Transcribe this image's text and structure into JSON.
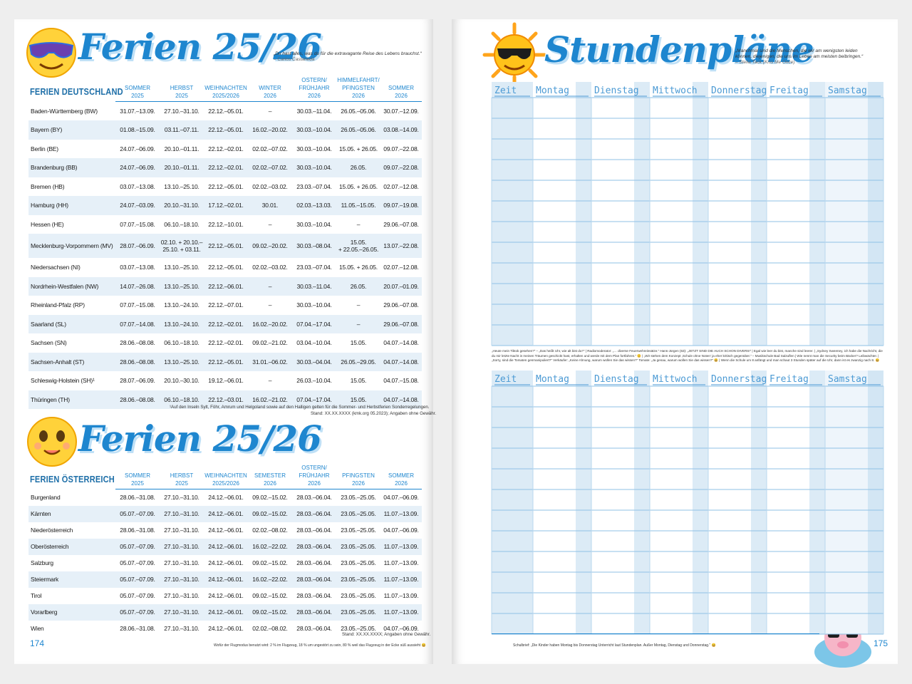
{
  "left": {
    "title_top": "Ferien 25/26",
    "quote": {
      "text": "„Du hast alles, was du für die extravagante Reise des Lebens brauchst.“",
      "author": "– Carlos Castaneda"
    },
    "de": {
      "label": "FERIEN DEUTSCHLAND",
      "headers": [
        "SOMMER\n2025",
        "HERBST\n2025",
        "WEIHNACHTEN\n2025/2026",
        "WINTER\n2026",
        "OSTERN/\nFRÜHJAHR 2026",
        "HIMMELFAHRT/\nPFINGSTEN 2026",
        "SOMMER\n2026"
      ],
      "rows": [
        [
          "Baden-Württemberg (BW)",
          "31.07.–13.09.",
          "27.10.–31.10.",
          "22.12.–05.01.",
          "–",
          "30.03.–11.04.",
          "26.05.–05.06.",
          "30.07.–12.09."
        ],
        [
          "Bayern (BY)",
          "01.08.–15.09.",
          "03.11.–07.11.",
          "22.12.–05.01.",
          "16.02.–20.02.",
          "30.03.–10.04.",
          "26.05.–05.06.",
          "03.08.–14.09."
        ],
        [
          "Berlin (BE)",
          "24.07.–06.09.",
          "20.10.–01.11.",
          "22.12.–02.01.",
          "02.02.–07.02.",
          "30.03.–10.04.",
          "15.05. + 26.05.",
          "09.07.–22.08."
        ],
        [
          "Brandenburg (BB)",
          "24.07.–06.09.",
          "20.10.–01.11.",
          "22.12.–02.01.",
          "02.02.–07.02.",
          "30.03.–10.04.",
          "26.05.",
          "09.07.–22.08."
        ],
        [
          "Bremen (HB)",
          "03.07.–13.08.",
          "13.10.–25.10.",
          "22.12.–05.01.",
          "02.02.–03.02.",
          "23.03.–07.04.",
          "15.05. + 26.05.",
          "02.07.–12.08."
        ],
        [
          "Hamburg (HH)",
          "24.07.–03.09.",
          "20.10.–31.10.",
          "17.12.–02.01.",
          "30.01.",
          "02.03.–13.03.",
          "11.05.–15.05.",
          "09.07.–19.08."
        ],
        [
          "Hessen (HE)",
          "07.07.–15.08.",
          "06.10.–18.10.",
          "22.12.–10.01.",
          "–",
          "30.03.–10.04.",
          "–",
          "29.06.–07.08."
        ],
        [
          "Mecklenburg-Vorpommern (MV)",
          "28.07.–06.09.",
          "02.10. + 20.10.–\n25.10. + 03.11.",
          "22.12.–05.01.",
          "09.02.–20.02.",
          "30.03.–08.04.",
          "15.05.\n+ 22.05.–26.05.",
          "13.07.–22.08."
        ],
        [
          "Niedersachsen (NI)",
          "03.07.–13.08.",
          "13.10.–25.10.",
          "22.12.–05.01.",
          "02.02.–03.02.",
          "23.03.–07.04.",
          "15.05. + 26.05.",
          "02.07.–12.08."
        ],
        [
          "Nordrhein-Westfalen (NW)",
          "14.07.–26.08.",
          "13.10.–25.10.",
          "22.12.–06.01.",
          "–",
          "30.03.–11.04.",
          "26.05.",
          "20.07.–01.09."
        ],
        [
          "Rheinland-Pfalz (RP)",
          "07.07.–15.08.",
          "13.10.–24.10.",
          "22.12.–07.01.",
          "–",
          "30.03.–10.04.",
          "–",
          "29.06.–07.08."
        ],
        [
          "Saarland (SL)",
          "07.07.–14.08.",
          "13.10.–24.10.",
          "22.12.–02.01.",
          "16.02.–20.02.",
          "07.04.–17.04.",
          "–",
          "29.06.–07.08."
        ],
        [
          "Sachsen (SN)",
          "28.06.–08.08.",
          "06.10.–18.10.",
          "22.12.–02.01.",
          "09.02.–21.02.",
          "03.04.–10.04.",
          "15.05.",
          "04.07.–14.08."
        ],
        [
          "Sachsen-Anhalt (ST)",
          "28.06.–08.08.",
          "13.10.–25.10.",
          "22.12.–05.01.",
          "31.01.–06.02.",
          "30.03.–04.04.",
          "26.05.–29.05.",
          "04.07.–14.08."
        ],
        [
          "Schleswig-Holstein (SH)¹",
          "28.07.–06.09.",
          "20.10.–30.10.",
          "19.12.–06.01.",
          "–",
          "26.03.–10.04.",
          "15.05.",
          "04.07.–15.08."
        ],
        [
          "Thüringen (TH)",
          "28.06.–08.08.",
          "06.10.–18.10.",
          "22.12.–03.01.",
          "16.02.–21.02.",
          "07.04.–17.04.",
          "15.05.",
          "04.07.–14.08."
        ]
      ]
    },
    "footnote": "¹Auf den Inseln Sylt, Föhr, Amrum und Helgoland sowie auf den Halligen gelten für die Sommer- und Herbstferien Sonderregelungen.",
    "stand_de": "Stand: XX.XX.XXXX (kmk.org 05.2023); Angaben ohne Gewähr.",
    "title_bottom": "Ferien 25/26",
    "at": {
      "label": "FERIEN ÖSTERREICH",
      "headers": [
        "SOMMER\n2025",
        "HERBST\n2025",
        "WEIHNACHTEN\n2025/2026",
        "SEMESTER\n2026",
        "OSTERN/\nFRÜHJAHR 2026",
        "PFINGSTEN\n2026",
        "SOMMER\n2026"
      ],
      "rows": [
        [
          "Burgenland",
          "28.06.–31.08.",
          "27.10.–31.10.",
          "24.12.–06.01.",
          "09.02.–15.02.",
          "28.03.–06.04.",
          "23.05.–25.05.",
          "04.07.–06.09."
        ],
        [
          "Kärnten",
          "05.07.–07.09.",
          "27.10.–31.10.",
          "24.12.–06.01.",
          "09.02.–15.02.",
          "28.03.–06.04.",
          "23.05.–25.05.",
          "11.07.–13.09."
        ],
        [
          "Niederösterreich",
          "28.06.–31.08.",
          "27.10.–31.10.",
          "24.12.–06.01.",
          "02.02.–08.02.",
          "28.03.–06.04.",
          "23.05.–25.05.",
          "04.07.–06.09."
        ],
        [
          "Oberösterreich",
          "05.07.–07.09.",
          "27.10.–31.10.",
          "24.12.–06.01.",
          "16.02.–22.02.",
          "28.03.–06.04.",
          "23.05.–25.05.",
          "11.07.–13.09."
        ],
        [
          "Salzburg",
          "05.07.–07.09.",
          "27.10.–31.10.",
          "24.12.–06.01.",
          "09.02.–15.02.",
          "28.03.–06.04.",
          "23.05.–25.05.",
          "11.07.–13.09."
        ],
        [
          "Steiermark",
          "05.07.–07.09.",
          "27.10.–31.10.",
          "24.12.–06.01.",
          "16.02.–22.02.",
          "28.03.–06.04.",
          "23.05.–25.05.",
          "11.07.–13.09."
        ],
        [
          "Tirol",
          "05.07.–07.09.",
          "27.10.–31.10.",
          "24.12.–06.01.",
          "09.02.–15.02.",
          "28.03.–06.04.",
          "23.05.–25.05.",
          "11.07.–13.09."
        ],
        [
          "Vorarlberg",
          "05.07.–07.09.",
          "27.10.–31.10.",
          "24.12.–06.01.",
          "09.02.–15.02.",
          "28.03.–06.04.",
          "23.05.–25.05.",
          "11.07.–13.09."
        ],
        [
          "Wien",
          "28.06.–31.08.",
          "27.10.–31.10.",
          "24.12.–06.01.",
          "02.02.–08.02.",
          "28.03.–06.04.",
          "23.05.–25.05.",
          "04.07.–06.09."
        ]
      ]
    },
    "stand_at": "Stand: XX.XX.XXXX; Angaben ohne Gewähr.",
    "joke": "Wofür der Flugmodus benutzt wird: 2 % im Flugzeug, 18 % um ungestört zu sein, 80 % weil das Flugzeug in der Ecke süß aussieht 😄",
    "page_number": "174"
  },
  "right": {
    "title": "Stundenpläne",
    "quote": {
      "text": "„Manchmal sind die Menschen, die wir am wenigsten leiden können, diejenigen, die uns im Leben am meisten beibringen.“",
      "author": "– Stella Tack (Kiss Me Once)"
    },
    "timetables": [
      {
        "headers": [
          "Zeit",
          "Montag",
          "Dienstag",
          "Mittwoch",
          "Donnerstag",
          "Freitag",
          "Samstag"
        ]
      },
      {
        "headers": [
          "Zeit",
          "Montag",
          "Dienstag",
          "Mittwoch",
          "Donnerstag",
          "Freitag",
          "Samstag"
        ]
      }
    ],
    "strip": "„Heute mein Tiktok gesehen?“ – „Das heißt Uhr, wie alt bist du?“ | Radiomoderator: „… diverse Feuerwehreinsätze.“ Hans-Jürgen (63): „JETZT SIND DIE AUCH SCHON DIVERS!“ | Egal wie leer du bist, manche sind leerer. | „Sydney Sweeney, ich habe die Nachricht, die du mir letzte Nacht in meinen Träumen geschickt hast, erhalten und werde mit dem Plan fortfahren.“ 😊 | „Wir stehen dem Konzept ‚Schule ohne Noten‘ ja eher kritisch gegenüber.“ – Musikschule Bad Salzuflen | Wie nennt man die Security beim Bäcker? Leibwächter. | „Sorry, sind die Tomaten genmanipuliert?“ Verkäufer: „Keine Ahnung, warum wollen Sie das wissen?“ Tomate: „Ja genau, warum wollen Sie das wissen?“ 😄 | Wenn die Schule um 8 anfängt und man schaut 3 Stunden später auf die Uhr, dann ist es zwanzig nach 8. 😄",
    "footer": "Schulbrief: „Die Kinder haben Montag bis Donnerstag Unterricht laut Stundenplan. Außer Montag, Dienstag und Donnerstag.“ 😄",
    "page_number": "175"
  }
}
